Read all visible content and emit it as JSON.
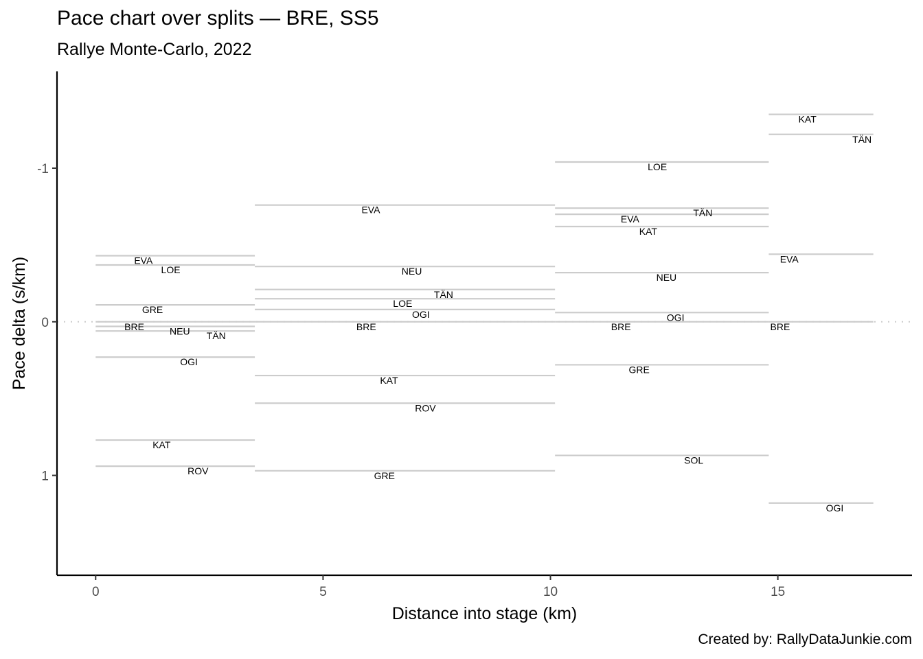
{
  "chart_data": {
    "type": "line",
    "title": "Pace chart over splits — BRE, SS5",
    "subtitle": "Rallye Monte-Carlo, 2022",
    "caption": "Created by: RallyDataJunkie.com",
    "xlabel": "Distance into stage (km)",
    "ylabel": "Pace delta (s/km)",
    "xlim": [
      -0.85,
      17.95
    ],
    "ylim": [
      1.65,
      -1.63
    ],
    "y_reversed": true,
    "xticks": [
      0,
      5,
      10,
      15
    ],
    "xtick_labels": [
      "0",
      "5",
      "10",
      "15"
    ],
    "yticks": [
      -1,
      0,
      1
    ],
    "ytick_labels": [
      "-1",
      "0",
      "1"
    ],
    "grid": false,
    "reference_line": {
      "y": 0,
      "style": "dotted"
    },
    "splits": [
      {
        "start": 0.0,
        "end": 3.5,
        "segments": [
          {
            "driver": "EVA",
            "pace": -0.43,
            "label_x": 1.05
          },
          {
            "driver": "LOE",
            "pace": -0.37,
            "label_x": 1.65
          },
          {
            "driver": "GRE",
            "pace": -0.11,
            "label_x": 1.25
          },
          {
            "driver": "BRE",
            "pace": 0.0,
            "label_x": 0.85
          },
          {
            "driver": "NEU",
            "pace": 0.03,
            "label_x": 1.85
          },
          {
            "driver": "TÄN",
            "pace": 0.06,
            "label_x": 2.65
          },
          {
            "driver": "OGI",
            "pace": 0.23,
            "label_x": 2.05
          },
          {
            "driver": "KAT",
            "pace": 0.77,
            "label_x": 1.45
          },
          {
            "driver": "ROV",
            "pace": 0.94,
            "label_x": 2.25
          }
        ]
      },
      {
        "start": 3.5,
        "end": 10.1,
        "segments": [
          {
            "driver": "EVA",
            "pace": -0.76,
            "label_x": 6.05
          },
          {
            "driver": "NEU",
            "pace": -0.36,
            "label_x": 6.95
          },
          {
            "driver": "TÄN",
            "pace": -0.21,
            "label_x": 7.65
          },
          {
            "driver": "LOE",
            "pace": -0.15,
            "label_x": 6.75
          },
          {
            "driver": "OGI",
            "pace": -0.08,
            "label_x": 7.15
          },
          {
            "driver": "BRE",
            "pace": 0.0,
            "label_x": 5.95
          },
          {
            "driver": "KAT",
            "pace": 0.35,
            "label_x": 6.45
          },
          {
            "driver": "ROV",
            "pace": 0.53,
            "label_x": 7.25
          },
          {
            "driver": "GRE",
            "pace": 0.97,
            "label_x": 6.35
          }
        ]
      },
      {
        "start": 10.1,
        "end": 14.8,
        "segments": [
          {
            "driver": "LOE",
            "pace": -1.04,
            "label_x": 12.35
          },
          {
            "driver": "TÄN",
            "pace": -0.74,
            "label_x": 13.35
          },
          {
            "driver": "EVA",
            "pace": -0.7,
            "label_x": 11.75
          },
          {
            "driver": "KAT",
            "pace": -0.62,
            "label_x": 12.15
          },
          {
            "driver": "NEU",
            "pace": -0.32,
            "label_x": 12.55
          },
          {
            "driver": "OGI",
            "pace": -0.06,
            "label_x": 12.75
          },
          {
            "driver": "BRE",
            "pace": 0.0,
            "label_x": 11.55
          },
          {
            "driver": "GRE",
            "pace": 0.28,
            "label_x": 11.95
          },
          {
            "driver": "SOL",
            "pace": 0.87,
            "label_x": 13.15
          }
        ]
      },
      {
        "start": 14.8,
        "end": 17.1,
        "segments": [
          {
            "driver": "KAT",
            "pace": -1.35,
            "label_x": 15.65
          },
          {
            "driver": "TÄN",
            "pace": -1.22,
            "label_x": 16.85
          },
          {
            "driver": "EVA",
            "pace": -0.44,
            "label_x": 15.25
          },
          {
            "driver": "BRE",
            "pace": 0.0,
            "label_x": 15.05
          },
          {
            "driver": "OGI",
            "pace": 1.18,
            "label_x": 16.25
          }
        ]
      }
    ]
  },
  "colors": {
    "segment": "#cccccc",
    "axis": "#000000",
    "tick_text": "#4d4d4d",
    "reference_line": "#cccccc",
    "label": "#000000"
  }
}
